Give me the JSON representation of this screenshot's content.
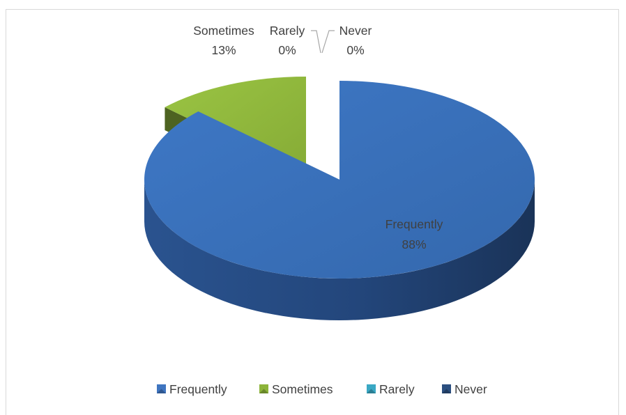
{
  "chart_data": {
    "type": "pie",
    "title": "",
    "style": "3d-exploded",
    "categories": [
      "Frequently",
      "Sometimes",
      "Rarely",
      "Never"
    ],
    "values": [
      88,
      13,
      0,
      0
    ],
    "value_labels": [
      "88%",
      "13%",
      "0%",
      "0%"
    ],
    "colors": [
      "#3f75c0",
      "#8db43a",
      "#3aa8c4",
      "#2b4f80"
    ],
    "legend": {
      "position": "bottom",
      "entries": [
        "Frequently",
        "Sometimes",
        "Rarely",
        "Never"
      ]
    }
  }
}
